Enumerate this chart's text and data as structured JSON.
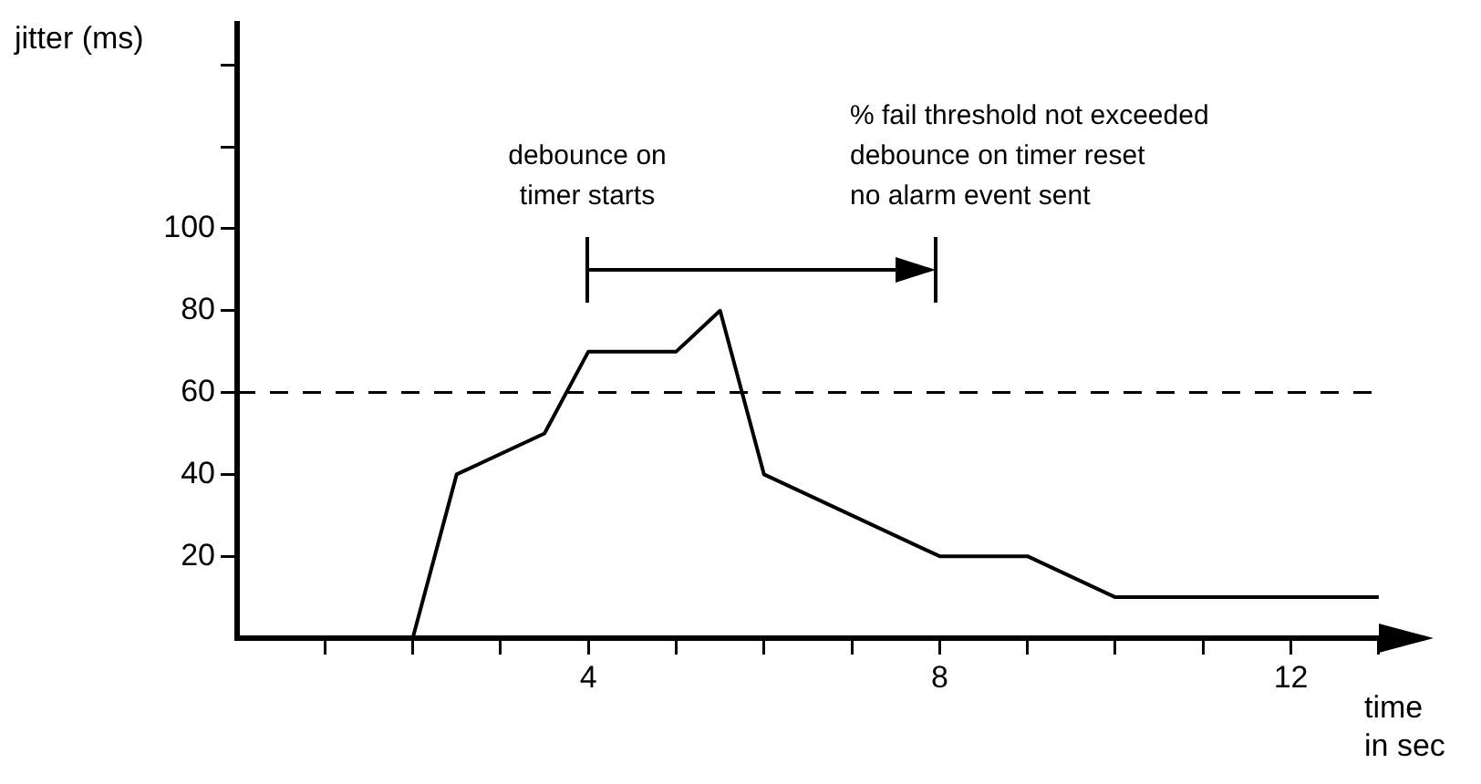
{
  "chart_data": {
    "type": "line",
    "xlabel": "time\nin sec",
    "ylabel": "jitter (ms)",
    "x": [
      2,
      2.5,
      3.5,
      4,
      5,
      5.5,
      6,
      8,
      9,
      10,
      13
    ],
    "series": [
      {
        "color": "#000000",
        "values": [
          0,
          40,
          50,
          70,
          70,
          80,
          40,
          20,
          20,
          10,
          10
        ]
      }
    ],
    "xlim": [
      0,
      13.5
    ],
    "xticks": [
      {
        "value": 1,
        "label": null
      },
      {
        "value": 2,
        "label": null
      },
      {
        "value": 3,
        "label": null
      },
      4,
      {
        "value": 5,
        "label": null
      },
      {
        "value": 6,
        "label": null
      },
      {
        "value": 7,
        "label": null
      },
      8,
      {
        "value": 9,
        "label": null
      },
      {
        "value": 10,
        "label": null
      },
      {
        "value": 11,
        "label": null
      },
      12,
      {
        "value": 13,
        "label": null
      }
    ],
    "ylim": [
      0,
      150
    ],
    "yticks": [
      20,
      40,
      60,
      80,
      100,
      {
        "value": 120,
        "label": null
      },
      {
        "value": 140,
        "label": null
      }
    ],
    "ref_lines": [
      {
        "axis": "y",
        "value": 60,
        "line_style": "dashed",
        "color": "#000000"
      }
    ],
    "annotations": [
      "debounce on\ntimer starts",
      "% fail threshold not exceeded\ndebounce on timer reset\nno alarm event sent"
    ],
    "grid": false,
    "legend": false,
    "marker": "none",
    "line_style": "solid"
  }
}
